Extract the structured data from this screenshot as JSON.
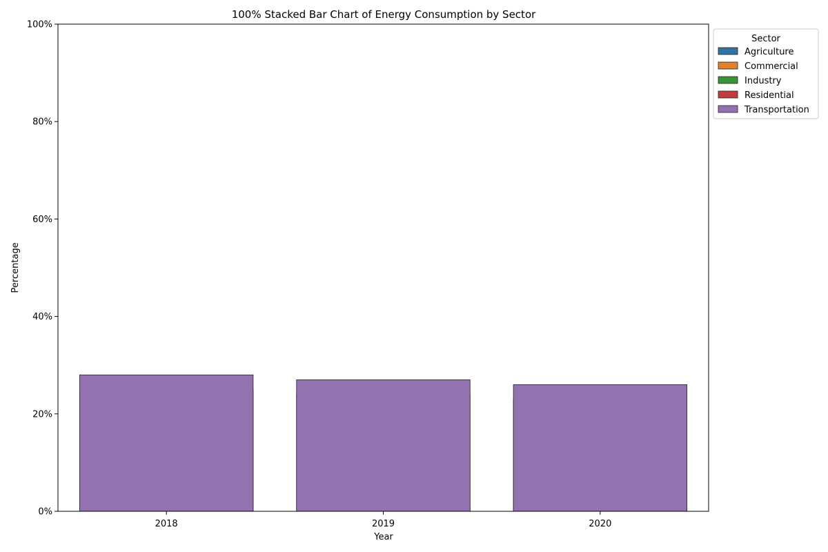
{
  "chart_data": {
    "type": "bar",
    "stacked": "100%",
    "title": "100% Stacked Bar Chart of Energy Consumption by Sector",
    "xlabel": "Year",
    "ylabel": "Percentage",
    "categories": [
      "2018",
      "2019",
      "2020"
    ],
    "ylim": [
      0,
      100
    ],
    "y_ticks": [
      "0%",
      "20%",
      "40%",
      "60%",
      "80%",
      "100%"
    ],
    "grid": false,
    "legend": {
      "title": "Sector",
      "position": "top-right, outside plot area"
    },
    "series": [
      {
        "name": "Agriculture",
        "color": "#3274a1",
        "values": [
          0,
          0,
          0
        ]
      },
      {
        "name": "Commercial",
        "color": "#e1812c",
        "values": [
          0,
          0,
          0
        ]
      },
      {
        "name": "Industry",
        "color": "#3a923a",
        "values": [
          0,
          0,
          0
        ]
      },
      {
        "name": "Residential",
        "color": "#c03d3e",
        "values": [
          25,
          24,
          23
        ]
      },
      {
        "name": "Transportation",
        "color": "#9372b2",
        "values": [
          28,
          27,
          26
        ]
      }
    ],
    "note_overlay": "bars drawn overlapping from baseline; Transportation drawn last and covers the others"
  }
}
